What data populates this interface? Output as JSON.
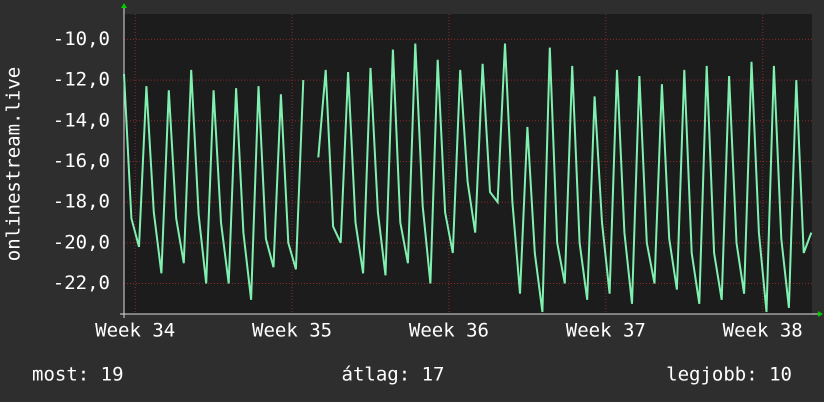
{
  "chart_data": {
    "type": "line",
    "y_label": "onlinestream.live",
    "xlim": [
      0,
      30.7
    ],
    "xticks": [
      {
        "value": 0.5,
        "label": "Week 34"
      },
      {
        "value": 7.5,
        "label": "Week 35"
      },
      {
        "value": 14.5,
        "label": "Week 36"
      },
      {
        "value": 21.5,
        "label": "Week 37"
      },
      {
        "value": 28.5,
        "label": "Week 38"
      }
    ],
    "ylim": [
      -23.5,
      -8.75
    ],
    "yticks": [
      {
        "value": -10,
        "label": "-10,0"
      },
      {
        "value": -12,
        "label": "-12,0"
      },
      {
        "value": -14,
        "label": "-14,0"
      },
      {
        "value": -16,
        "label": "-16,0"
      },
      {
        "value": -18,
        "label": "-18,0"
      },
      {
        "value": -20,
        "label": "-20,0"
      },
      {
        "value": -22,
        "label": "-22,0"
      }
    ],
    "grid": true,
    "series": [
      {
        "name": "onlinestream.live",
        "color": "#80f0b0",
        "x": [
          0,
          0.33,
          0.67,
          1,
          1.33,
          1.67,
          2,
          2.33,
          2.67,
          3,
          3.33,
          3.67,
          4,
          4.33,
          4.67,
          5,
          5.33,
          5.67,
          6,
          6.33,
          6.67,
          7,
          7.33,
          7.67,
          8,
          8.33,
          8.67,
          9,
          9.33,
          9.67,
          10,
          10.33,
          10.67,
          11,
          11.33,
          11.67,
          12,
          12.33,
          12.67,
          13,
          13.33,
          13.67,
          14,
          14.33,
          14.67,
          15,
          15.33,
          15.67,
          16,
          16.33,
          16.67,
          17,
          17.33,
          17.67,
          18,
          18.33,
          18.67,
          19,
          19.33,
          19.67,
          20,
          20.33,
          20.67,
          21,
          21.33,
          21.67,
          22,
          22.33,
          22.67,
          23,
          23.33,
          23.67,
          24,
          24.33,
          24.67,
          25,
          25.33,
          25.67,
          26,
          26.33,
          26.67,
          27,
          27.33,
          27.67,
          28,
          28.33,
          28.67,
          29,
          29.33,
          29.67,
          30,
          30.33,
          30.67
        ],
        "values": [
          -11.7,
          -18.8,
          -20.2,
          -12.3,
          -18.5,
          -21.5,
          -12.5,
          -18.8,
          -21,
          -11.5,
          -18.6,
          -22,
          -12.5,
          -19,
          -22,
          -12.4,
          -19.5,
          -22.8,
          -12.3,
          -19.8,
          -21.2,
          -12.7,
          -20,
          -21.3,
          -12,
          null,
          -15.8,
          -11.5,
          -19.2,
          -20,
          -11.6,
          -19,
          -21.5,
          -11.4,
          -18.5,
          -21.6,
          -10.5,
          -19,
          -21,
          -10.2,
          -18.2,
          -22,
          -11,
          -18.5,
          -20.5,
          -11.5,
          -17,
          -19.5,
          -11.2,
          -17.5,
          -18,
          -10.2,
          -18,
          -22.5,
          -14.3,
          -20.5,
          -23.4,
          -10.4,
          -20,
          -22,
          -11.3,
          -20,
          -22.8,
          -12.8,
          -19,
          -22.5,
          -11.5,
          -19.5,
          -23,
          -11.8,
          -20,
          -22,
          -12.2,
          -19.8,
          -22.3,
          -11.5,
          -20.5,
          -23,
          -11.3,
          -20.5,
          -22.8,
          -11.8,
          -20,
          -22.5,
          -11.1,
          -19.5,
          -23.4,
          -11.3,
          -19.8,
          -23.2,
          -12,
          -20.5,
          -19.5
        ]
      }
    ],
    "stats": [
      "most: 19",
      "átlag: 17",
      "legjobb: 10"
    ]
  }
}
